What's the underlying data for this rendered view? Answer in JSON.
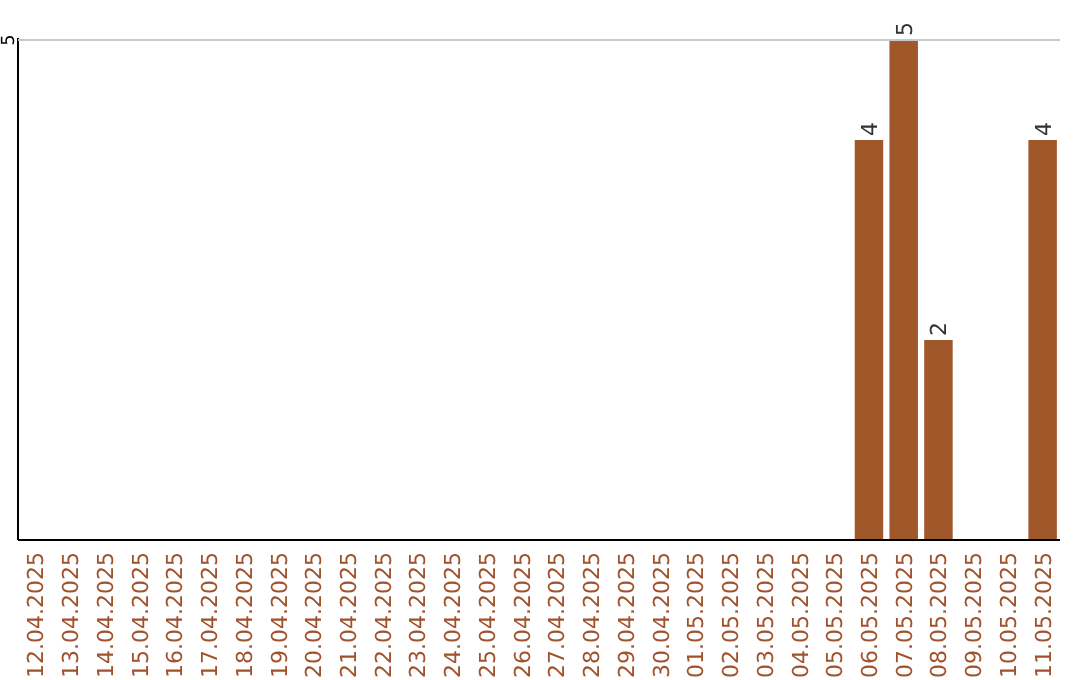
{
  "chart_data": {
    "type": "bar",
    "categories": [
      "12.04.2025",
      "13.04.2025",
      "14.04.2025",
      "15.04.2025",
      "16.04.2025",
      "17.04.2025",
      "18.04.2025",
      "19.04.2025",
      "20.04.2025",
      "21.04.2025",
      "22.04.2025",
      "23.04.2025",
      "24.04.2025",
      "25.04.2025",
      "26.04.2025",
      "27.04.2025",
      "28.04.2025",
      "29.04.2025",
      "30.04.2025",
      "01.05.2025",
      "02.05.2025",
      "03.05.2025",
      "04.05.2025",
      "05.05.2025",
      "06.05.2025",
      "07.05.2025",
      "08.05.2025",
      "09.05.2025",
      "10.05.2025",
      "11.05.2025"
    ],
    "values": [
      null,
      null,
      null,
      null,
      null,
      null,
      null,
      null,
      null,
      null,
      null,
      null,
      null,
      null,
      null,
      null,
      null,
      null,
      null,
      null,
      null,
      null,
      null,
      null,
      4,
      5,
      2,
      null,
      null,
      4
    ],
    "value_labels": [
      null,
      null,
      null,
      null,
      null,
      null,
      null,
      null,
      null,
      null,
      null,
      null,
      null,
      null,
      null,
      null,
      null,
      null,
      null,
      null,
      null,
      null,
      null,
      null,
      "4",
      "5",
      "2",
      null,
      null,
      "4"
    ],
    "color": "#a0572a",
    "ylim": [
      0,
      5
    ],
    "ref_lines": [
      {
        "axis": "y",
        "value": 5,
        "label": "5",
        "color": "#c8c8c8"
      }
    ]
  }
}
